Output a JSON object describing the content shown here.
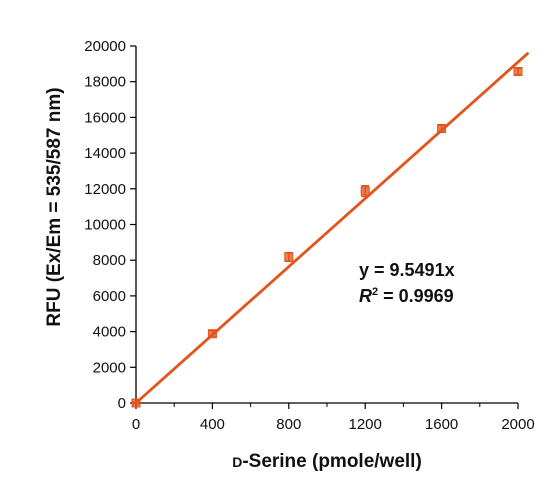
{
  "chart_data": {
    "type": "scatter",
    "xlabel_prefix": "D",
    "xlabel_rest": "-Serine (pmole/well)",
    "ylabel": "RFU (Ex/Em = 535/587 nm)",
    "xlim": [
      0,
      2000
    ],
    "ylim": [
      0,
      20000
    ],
    "x_ticks": [
      0,
      400,
      800,
      1200,
      1600,
      2000
    ],
    "y_ticks": [
      0,
      2000,
      4000,
      6000,
      8000,
      10000,
      12000,
      14000,
      16000,
      18000,
      20000
    ],
    "series": [
      {
        "x": [
          0,
          400,
          800,
          1200,
          1600,
          2000
        ],
        "y": [
          0,
          3880,
          8180,
          11870,
          15380,
          18570
        ],
        "error": [
          40,
          200,
          240,
          300,
          200,
          200
        ],
        "color": "#e2541c"
      }
    ],
    "trendline": {
      "slope": 9.5491,
      "intercept": 0,
      "x_range": [
        0,
        2050
      ],
      "color": "#e2541c"
    },
    "equation": "y = 9.5491x",
    "r2_letter": "R",
    "r2_exponent": "2",
    "r2_value": " = 0.9969"
  }
}
